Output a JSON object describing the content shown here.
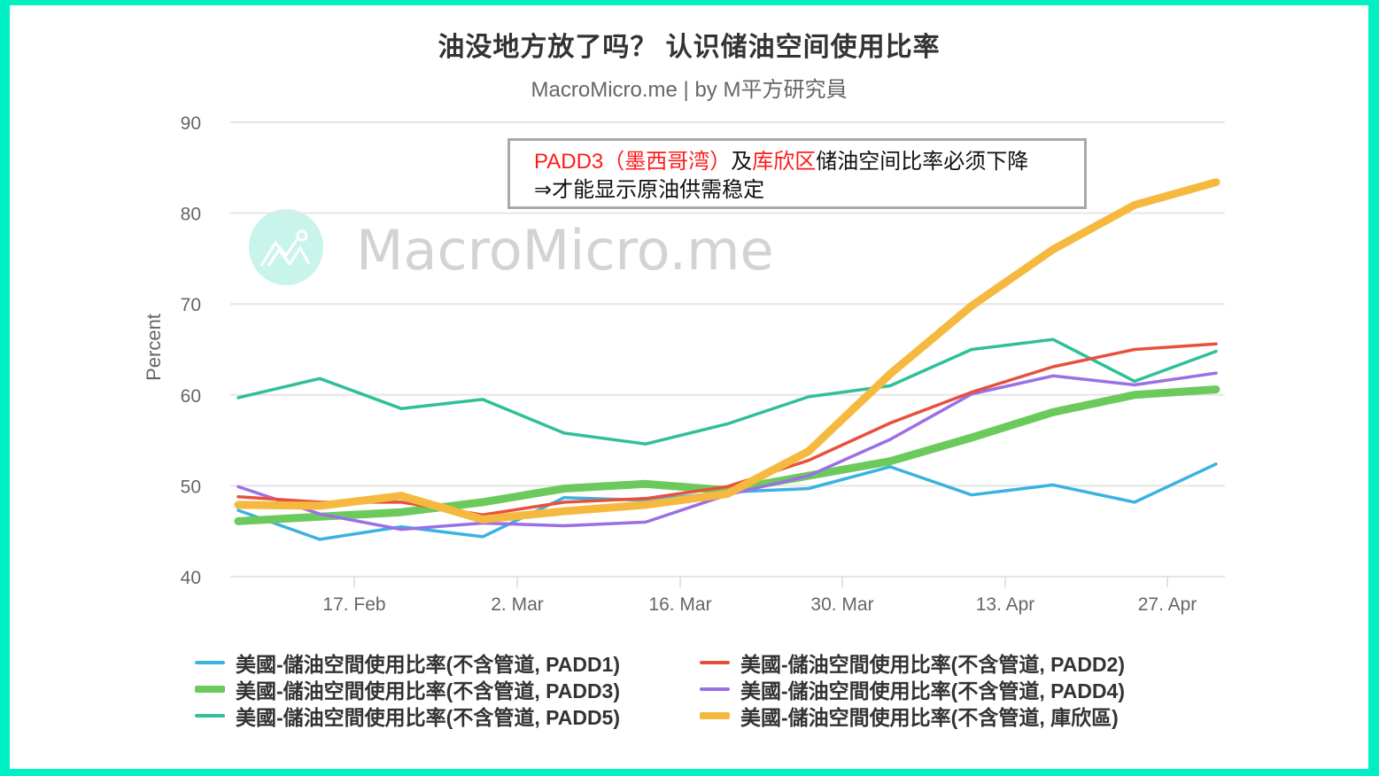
{
  "header": {
    "title": "油没地方放了吗？ 认识储油空间使用比率",
    "subtitle": "MacroMicro.me | by M平方研究員"
  },
  "watermark": {
    "text": "MacroMicro.me",
    "icon": "chart-line-logo-icon"
  },
  "annotation": {
    "line1_part1": "PADD3（墨西哥湾）",
    "line1_part2": "及",
    "line1_part3": "库欣区",
    "line1_part4": "储油空间比率必须下降",
    "line2": "⇒才能显示原油供需稳定",
    "highlight_color": "#ff1a1a"
  },
  "legend": {
    "items": [
      {
        "label": "美國-儲油空間使用比率(不含管道, PADD1)",
        "color": "#3bb2e0",
        "thick": false
      },
      {
        "label": "美國-儲油空間使用比率(不含管道, PADD2)",
        "color": "#e7513b",
        "thick": false
      },
      {
        "label": "美國-儲油空間使用比率(不含管道, PADD3)",
        "color": "#6cca5c",
        "thick": true
      },
      {
        "label": "美國-儲油空間使用比率(不含管道, PADD4)",
        "color": "#9b6fe6",
        "thick": false
      },
      {
        "label": "美國-儲油空間使用比率(不含管道, PADD5)",
        "color": "#2fbf99",
        "thick": false
      },
      {
        "label": "美國-儲油空間使用比率(不含管道, 庫欣區)",
        "color": "#f6b93f",
        "thick": true
      }
    ]
  },
  "chart_data": {
    "type": "line",
    "title": "油没地方放了吗？ 认识储油空间使用比率",
    "subtitle": "MacroMicro.me | by M平方研究員",
    "xlabel": "",
    "ylabel": "Percent",
    "ylim": [
      40,
      90
    ],
    "yticks": [
      "90",
      "80",
      "70",
      "60",
      "50",
      "40"
    ],
    "xticks": [
      "17. Feb",
      "2. Mar",
      "16. Mar",
      "30. Mar",
      "13. Apr",
      "27. Apr"
    ],
    "grid": true,
    "legend_position": "bottom",
    "x": [
      "2020-02-07",
      "2020-02-14",
      "2020-02-21",
      "2020-02-28",
      "2020-03-06",
      "2020-03-13",
      "2020-03-20",
      "2020-03-27",
      "2020-04-03",
      "2020-04-10",
      "2020-04-17",
      "2020-04-24",
      "2020-05-01"
    ],
    "series": [
      {
        "name": "美國-儲油空間使用比率(不含管道, PADD1)",
        "values": [
          47.3,
          44.1,
          45.5,
          44.4,
          48.7,
          48.4,
          49.3,
          49.7,
          52.1,
          49.0,
          50.1,
          48.2,
          52.4
        ]
      },
      {
        "name": "美國-儲油空間使用比率(不含管道, PADD2)",
        "values": [
          48.8,
          48.2,
          48.2,
          46.8,
          48.2,
          48.6,
          49.9,
          52.8,
          56.9,
          60.3,
          63.1,
          65.0,
          65.6
        ]
      },
      {
        "name": "美國-儲油空間使用比率(不含管道, PADD3)",
        "values": [
          46.1,
          46.6,
          47.1,
          48.2,
          49.7,
          50.2,
          49.5,
          51.1,
          52.7,
          55.3,
          58.1,
          60.0,
          60.6
        ]
      },
      {
        "name": "美國-儲油空間使用比率(不含管道, PADD4)",
        "values": [
          49.9,
          46.9,
          45.2,
          45.9,
          45.6,
          46.0,
          49.0,
          51.1,
          55.1,
          60.1,
          62.1,
          61.1,
          62.4
        ]
      },
      {
        "name": "美國-儲油空間使用比率(不含管道, PADD5)",
        "values": [
          59.7,
          61.8,
          58.5,
          59.5,
          55.8,
          54.6,
          56.8,
          59.8,
          61.0,
          65.0,
          66.1,
          61.5,
          64.8
        ]
      },
      {
        "name": "美國-儲油空間使用比率(不含管道, 庫欣區)",
        "values": [
          47.9,
          47.8,
          48.9,
          46.3,
          47.2,
          47.9,
          49.1,
          53.8,
          62.3,
          69.8,
          76.0,
          80.9,
          83.4
        ]
      }
    ]
  }
}
